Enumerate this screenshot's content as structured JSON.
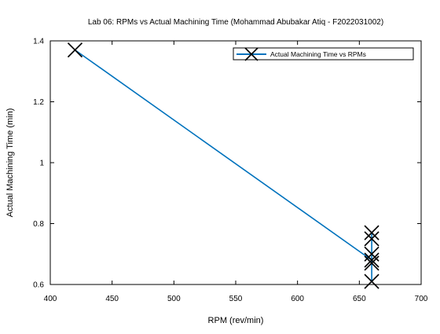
{
  "chart_data": {
    "type": "line",
    "title": "Lab 06: RPMs vs Actual Machining Time (Mohammad Abubakar Atiq - F2022031002)",
    "xlabel": "RPM (rev/min)",
    "ylabel": "Actual Machining Time (min)",
    "xlim": [
      400,
      700
    ],
    "ylim": [
      0.6,
      1.4
    ],
    "xticks": [
      400,
      450,
      500,
      550,
      600,
      650,
      700
    ],
    "yticks": [
      0.6,
      0.8,
      1.0,
      1.2,
      1.4
    ],
    "xtick_labels": [
      "400",
      "450",
      "500",
      "550",
      "600",
      "650",
      "700"
    ],
    "ytick_labels": [
      "0.6",
      "0.8",
      "1",
      "1.2",
      "1.4"
    ],
    "grid": false,
    "legend_position": "top-right",
    "series": [
      {
        "name": "Actual Machining Time vs RPMs",
        "color": "#0072BD",
        "marker": "x",
        "marker_color": "#000000",
        "x": [
          420,
          660,
          660,
          660,
          660,
          660,
          660
        ],
        "y": [
          1.37,
          0.68,
          0.75,
          0.7,
          0.67,
          0.61,
          0.77
        ]
      }
    ]
  }
}
